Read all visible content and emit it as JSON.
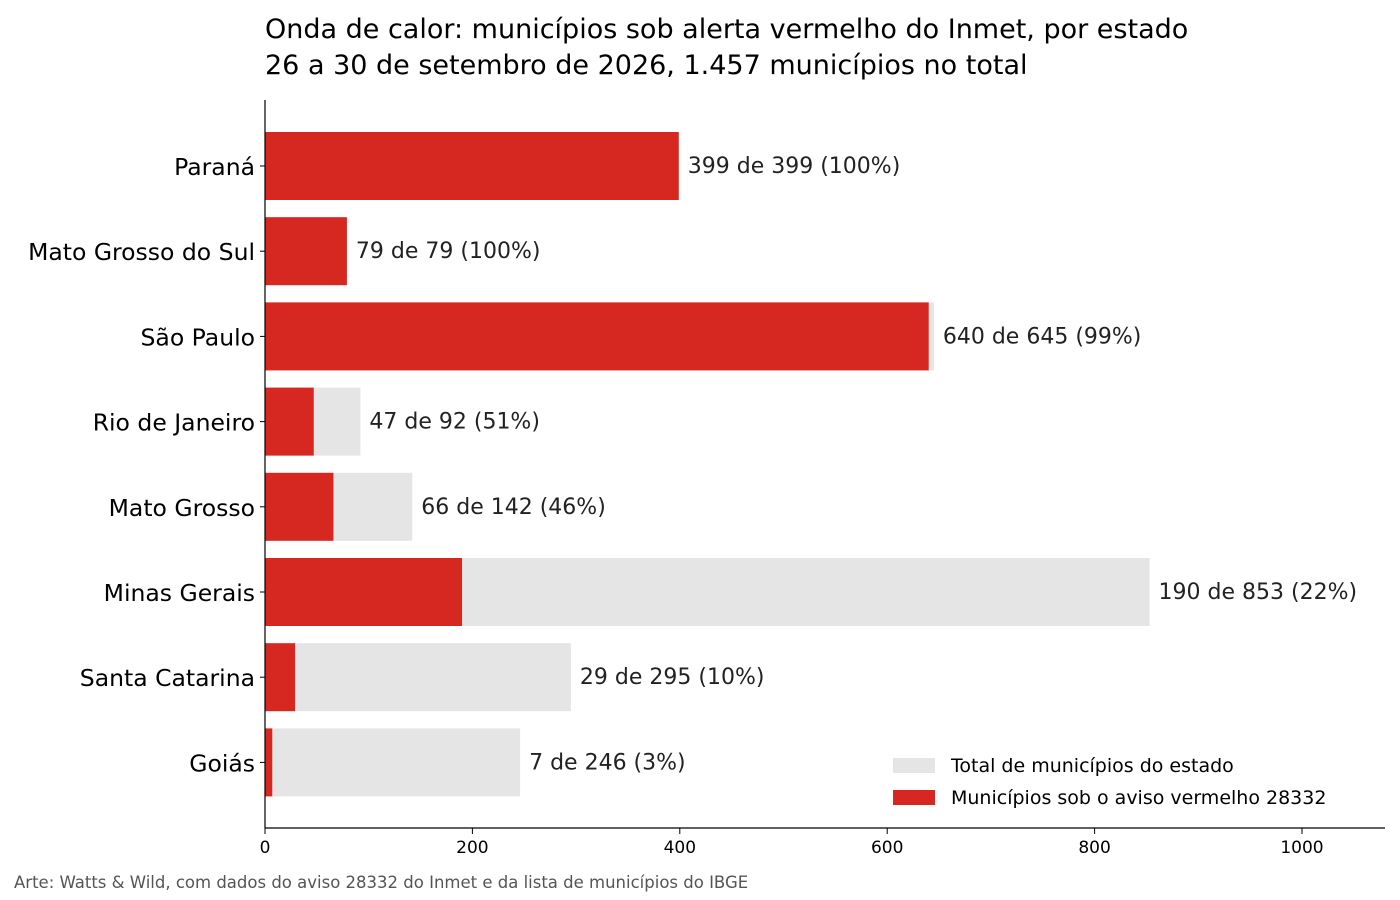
{
  "title_line1": "Onda de calor: municípios sob alerta vermelho do Inmet, por estado",
  "title_line2": "26 a 30 de setembro de 2026, 1.457 municípios no total",
  "footer": "Arte: Watts & Wild, com dados do aviso 28332 do Inmet e da lista de municípios do IBGE",
  "colors": {
    "alert": "#d62720",
    "total": "#e5e5e5",
    "text": "#222222",
    "axis": "#000000"
  },
  "chart_data": {
    "type": "bar",
    "orientation": "horizontal",
    "categories": [
      "Paraná",
      "Mato Grosso do Sul",
      "São Paulo",
      "Rio de Janeiro",
      "Mato Grosso",
      "Minas Gerais",
      "Santa Catarina",
      "Goiás"
    ],
    "series": [
      {
        "name": "Total de municípios do estado",
        "values": [
          399,
          79,
          645,
          92,
          142,
          853,
          295,
          246
        ]
      },
      {
        "name": "Municípios sob o aviso vermelho 28332",
        "values": [
          399,
          79,
          640,
          47,
          66,
          190,
          29,
          7
        ]
      }
    ],
    "data_labels": [
      "399 de 399 (100%)",
      "79 de 79 (100%)",
      "640 de 645 (99%)",
      "47 de 92 (51%)",
      "66 de 142 (46%)",
      "190 de 853 (22%)",
      "29 de 295 (10%)",
      "7 de 246 (3%)"
    ],
    "xlim": [
      0,
      1080
    ],
    "xticks": [
      0,
      200,
      400,
      600,
      800,
      1000
    ],
    "legend_position": "bottom-right",
    "grid": false
  }
}
